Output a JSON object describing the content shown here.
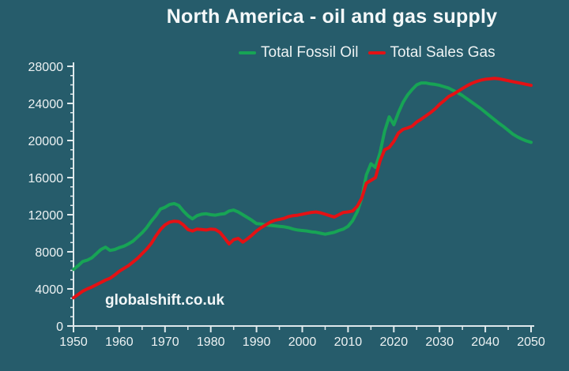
{
  "page": {
    "background_color": "#265c6b"
  },
  "chart_data": {
    "type": "line",
    "title": "North America - oil and gas supply",
    "watermark": "globalshift.co.uk",
    "xlabel": "",
    "ylabel": "",
    "grid": false,
    "legend_position": "top-center",
    "x_axis": {
      "min": 1950,
      "max": 2050,
      "major_step": 10,
      "minor_step": 5,
      "tick_labels": [
        "1950",
        "1960",
        "1970",
        "1980",
        "1990",
        "2000",
        "2010",
        "2020",
        "2030",
        "2040",
        "2050"
      ]
    },
    "y_axis": {
      "min": 0,
      "max": 28000,
      "major_step": 4000,
      "minor_step": 1000,
      "tick_labels": [
        "0",
        "4000",
        "8000",
        "12000",
        "16000",
        "20000",
        "24000",
        "28000"
      ]
    },
    "colors": {
      "background": "#265c6b",
      "axis": "#dfe9ec",
      "text": "#edf2f3"
    },
    "series": [
      {
        "name": "Total Fossil Oil",
        "color": "#17a455",
        "points": [
          [
            1950,
            6100
          ],
          [
            1951,
            6500
          ],
          [
            1952,
            6950
          ],
          [
            1953,
            7100
          ],
          [
            1954,
            7350
          ],
          [
            1955,
            7800
          ],
          [
            1956,
            8250
          ],
          [
            1957,
            8500
          ],
          [
            1958,
            8150
          ],
          [
            1959,
            8250
          ],
          [
            1960,
            8450
          ],
          [
            1961,
            8600
          ],
          [
            1962,
            8850
          ],
          [
            1963,
            9150
          ],
          [
            1964,
            9600
          ],
          [
            1965,
            10050
          ],
          [
            1966,
            10600
          ],
          [
            1967,
            11300
          ],
          [
            1968,
            11900
          ],
          [
            1969,
            12600
          ],
          [
            1970,
            12800
          ],
          [
            1971,
            13100
          ],
          [
            1972,
            13200
          ],
          [
            1973,
            13000
          ],
          [
            1974,
            12400
          ],
          [
            1975,
            11900
          ],
          [
            1976,
            11550
          ],
          [
            1977,
            11900
          ],
          [
            1978,
            12050
          ],
          [
            1979,
            12100
          ],
          [
            1980,
            12000
          ],
          [
            1981,
            11950
          ],
          [
            1982,
            12050
          ],
          [
            1983,
            12100
          ],
          [
            1984,
            12400
          ],
          [
            1985,
            12500
          ],
          [
            1986,
            12300
          ],
          [
            1987,
            12000
          ],
          [
            1988,
            11700
          ],
          [
            1989,
            11400
          ],
          [
            1990,
            11050
          ],
          [
            1991,
            11000
          ],
          [
            1992,
            10900
          ],
          [
            1993,
            10850
          ],
          [
            1994,
            10800
          ],
          [
            1995,
            10750
          ],
          [
            1996,
            10700
          ],
          [
            1997,
            10600
          ],
          [
            1998,
            10450
          ],
          [
            1999,
            10350
          ],
          [
            2000,
            10300
          ],
          [
            2001,
            10250
          ],
          [
            2002,
            10150
          ],
          [
            2003,
            10100
          ],
          [
            2004,
            10000
          ],
          [
            2005,
            9900
          ],
          [
            2006,
            10000
          ],
          [
            2007,
            10100
          ],
          [
            2008,
            10300
          ],
          [
            2009,
            10450
          ],
          [
            2010,
            10750
          ],
          [
            2011,
            11350
          ],
          [
            2012,
            12300
          ],
          [
            2013,
            13800
          ],
          [
            2014,
            16300
          ],
          [
            2015,
            17500
          ],
          [
            2016,
            17100
          ],
          [
            2017,
            18700
          ],
          [
            2018,
            21000
          ],
          [
            2019,
            22550
          ],
          [
            2020,
            21700
          ],
          [
            2021,
            23000
          ],
          [
            2022,
            24100
          ],
          [
            2023,
            24900
          ],
          [
            2024,
            25500
          ],
          [
            2025,
            26000
          ],
          [
            2026,
            26200
          ],
          [
            2027,
            26200
          ],
          [
            2028,
            26100
          ],
          [
            2029,
            26050
          ],
          [
            2030,
            25950
          ],
          [
            2031,
            25800
          ],
          [
            2032,
            25650
          ],
          [
            2033,
            25400
          ],
          [
            2034,
            25150
          ],
          [
            2035,
            24850
          ],
          [
            2036,
            24500
          ],
          [
            2037,
            24150
          ],
          [
            2038,
            23800
          ],
          [
            2039,
            23450
          ],
          [
            2040,
            23050
          ],
          [
            2041,
            22650
          ],
          [
            2042,
            22250
          ],
          [
            2043,
            21850
          ],
          [
            2044,
            21500
          ],
          [
            2045,
            21100
          ],
          [
            2046,
            20700
          ],
          [
            2047,
            20400
          ],
          [
            2048,
            20150
          ],
          [
            2049,
            19950
          ],
          [
            2050,
            19800
          ]
        ]
      },
      {
        "name": "Total Sales Gas",
        "color": "#e41114",
        "points": [
          [
            1950,
            3050
          ],
          [
            1951,
            3400
          ],
          [
            1952,
            3750
          ],
          [
            1953,
            4000
          ],
          [
            1954,
            4200
          ],
          [
            1955,
            4450
          ],
          [
            1956,
            4700
          ],
          [
            1957,
            4950
          ],
          [
            1958,
            5150
          ],
          [
            1959,
            5500
          ],
          [
            1960,
            5900
          ],
          [
            1961,
            6200
          ],
          [
            1962,
            6500
          ],
          [
            1963,
            6900
          ],
          [
            1964,
            7300
          ],
          [
            1965,
            7800
          ],
          [
            1966,
            8300
          ],
          [
            1967,
            8900
          ],
          [
            1968,
            9700
          ],
          [
            1969,
            10400
          ],
          [
            1970,
            10900
          ],
          [
            1971,
            11200
          ],
          [
            1972,
            11300
          ],
          [
            1973,
            11250
          ],
          [
            1974,
            10900
          ],
          [
            1975,
            10400
          ],
          [
            1976,
            10250
          ],
          [
            1977,
            10450
          ],
          [
            1978,
            10400
          ],
          [
            1979,
            10350
          ],
          [
            1980,
            10450
          ],
          [
            1981,
            10400
          ],
          [
            1982,
            10100
          ],
          [
            1983,
            9500
          ],
          [
            1984,
            8850
          ],
          [
            1985,
            9300
          ],
          [
            1986,
            9450
          ],
          [
            1987,
            9050
          ],
          [
            1988,
            9400
          ],
          [
            1989,
            9800
          ],
          [
            1990,
            10250
          ],
          [
            1991,
            10600
          ],
          [
            1992,
            10900
          ],
          [
            1993,
            11200
          ],
          [
            1994,
            11400
          ],
          [
            1995,
            11500
          ],
          [
            1996,
            11600
          ],
          [
            1997,
            11800
          ],
          [
            1998,
            11900
          ],
          [
            1999,
            11950
          ],
          [
            2000,
            12050
          ],
          [
            2001,
            12150
          ],
          [
            2002,
            12250
          ],
          [
            2003,
            12300
          ],
          [
            2004,
            12200
          ],
          [
            2005,
            12050
          ],
          [
            2006,
            11900
          ],
          [
            2007,
            11750
          ],
          [
            2008,
            12000
          ],
          [
            2009,
            12250
          ],
          [
            2010,
            12300
          ],
          [
            2011,
            12400
          ],
          [
            2012,
            12900
          ],
          [
            2013,
            13800
          ],
          [
            2014,
            15400
          ],
          [
            2015,
            15700
          ],
          [
            2016,
            16000
          ],
          [
            2017,
            17800
          ],
          [
            2018,
            19000
          ],
          [
            2019,
            19250
          ],
          [
            2020,
            19900
          ],
          [
            2021,
            20800
          ],
          [
            2022,
            21200
          ],
          [
            2023,
            21350
          ],
          [
            2024,
            21550
          ],
          [
            2025,
            22000
          ],
          [
            2026,
            22300
          ],
          [
            2027,
            22650
          ],
          [
            2028,
            23000
          ],
          [
            2029,
            23400
          ],
          [
            2030,
            23900
          ],
          [
            2031,
            24300
          ],
          [
            2032,
            24750
          ],
          [
            2033,
            25000
          ],
          [
            2034,
            25300
          ],
          [
            2035,
            25600
          ],
          [
            2036,
            25900
          ],
          [
            2037,
            26150
          ],
          [
            2038,
            26350
          ],
          [
            2039,
            26500
          ],
          [
            2040,
            26600
          ],
          [
            2041,
            26650
          ],
          [
            2042,
            26700
          ],
          [
            2043,
            26650
          ],
          [
            2044,
            26550
          ],
          [
            2045,
            26450
          ],
          [
            2046,
            26350
          ],
          [
            2047,
            26250
          ],
          [
            2048,
            26150
          ],
          [
            2049,
            26050
          ],
          [
            2050,
            25950
          ]
        ]
      }
    ]
  }
}
